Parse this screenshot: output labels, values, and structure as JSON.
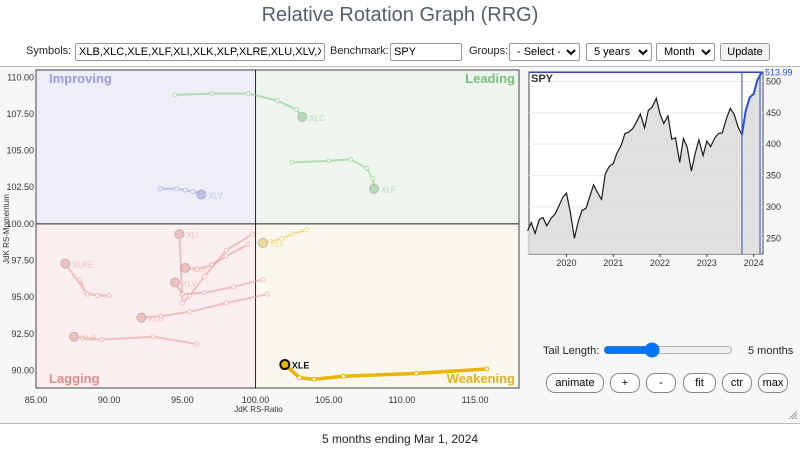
{
  "page_title": "Relative Rotation Graph (RRG)",
  "controls": {
    "symbols_label": "Symbols:",
    "symbols_value": "XLB,XLC,XLE,XLF,XLI,XLK,XLP,XLRE,XLU,XLV,XLY",
    "benchmark_label": "Benchmark:",
    "benchmark_value": "SPY",
    "groups_label": "Groups:",
    "groups_selected": "- Select -",
    "period_selected": "5 years",
    "frequency_selected": "Monthly",
    "update_label": "Update"
  },
  "quadrants": {
    "improving": "Improving",
    "leading": "Leading",
    "lagging": "Lagging",
    "weakening": "Weakening"
  },
  "colors": {
    "improving_bg": "#eeeef8",
    "leading_bg": "#eef5ee",
    "lagging_bg": "#fbeeee",
    "weakening_bg": "#faf8ee",
    "improving_text": "#9a9ae0",
    "leading_text": "#7cbf7c",
    "lagging_text": "#e08c8c",
    "weakening_text": "#e2b21b",
    "xle_tail": "#e8b600",
    "spy_line": "#1a1a1a",
    "spy_recent": "#2b4fd6",
    "spy_fill": "#dadada"
  },
  "tail_control": {
    "label": "Tail Length:",
    "value": 5,
    "min": 1,
    "max": 12,
    "value_label": "5 months"
  },
  "buttons": {
    "animate": "animate",
    "plus": "+",
    "minus": "-",
    "fit": "fit",
    "ctr": "ctr",
    "max": "max"
  },
  "footer_text": "5 months ending Mar 1, 2024",
  "chart_data": [
    {
      "type": "scatter",
      "title": "",
      "xlabel": "JdK RS-Ratio",
      "ylabel": "JdK RS-Momentum",
      "xlim": [
        85,
        118
      ],
      "ylim": [
        88.8,
        110.5
      ],
      "xticks": [
        "85.00",
        "90.00",
        "95.00",
        "100.00",
        "105.00",
        "110.00",
        "115.00"
      ],
      "yticks": [
        "110.00",
        "107.50",
        "105.00",
        "102.50",
        "100.00",
        "97.50",
        "95.00",
        "92.50",
        "90.00"
      ],
      "center": [
        100,
        100
      ],
      "series": [
        {
          "name": "XLC",
          "color": "#82c882",
          "highlight": false,
          "points": [
            [
              94.5,
              108.8
            ],
            [
              97.0,
              108.9
            ],
            [
              99.5,
              108.9
            ],
            [
              101.5,
              108.4
            ],
            [
              102.8,
              107.8
            ],
            [
              103.2,
              107.3
            ]
          ]
        },
        {
          "name": "XLF",
          "color": "#82c882",
          "highlight": false,
          "points": [
            [
              102.5,
              104.2
            ],
            [
              105.0,
              104.3
            ],
            [
              106.5,
              104.4
            ],
            [
              107.6,
              103.8
            ],
            [
              108.0,
              103.1
            ],
            [
              108.1,
              102.4
            ]
          ]
        },
        {
          "name": "XLY",
          "color": "#9a9ae0",
          "highlight": false,
          "points": [
            [
              93.5,
              102.4
            ],
            [
              94.6,
              102.4
            ],
            [
              95.2,
              102.3
            ],
            [
              95.7,
              102.2
            ],
            [
              96.1,
              102.1
            ],
            [
              96.3,
              102.0
            ]
          ]
        },
        {
          "name": "XLK",
          "color": "#e8c84a",
          "highlight": false,
          "points": [
            [
              103.5,
              99.6
            ],
            [
              102.5,
              99.3
            ],
            [
              101.8,
              99.0
            ],
            [
              101.0,
              98.8
            ],
            [
              100.6,
              98.7
            ],
            [
              100.5,
              98.7
            ]
          ]
        },
        {
          "name": "XLE",
          "color": "#e8b600",
          "highlight": true,
          "points": [
            [
              115.8,
              90.1
            ],
            [
              111.0,
              89.8
            ],
            [
              106.0,
              89.6
            ],
            [
              104.0,
              89.4
            ],
            [
              103.0,
              89.5
            ],
            [
              102.0,
              90.4
            ]
          ]
        },
        {
          "name": "XLI",
          "color": "#e89a9a",
          "highlight": false,
          "points": [
            [
              99.8,
              99.3
            ],
            [
              98.0,
              98.2
            ],
            [
              96.5,
              96.4
            ],
            [
              95.5,
              95.1
            ],
            [
              95.0,
              94.6
            ],
            [
              94.8,
              99.3
            ]
          ]
        },
        {
          "name": "XLRE",
          "color": "#e89a9a",
          "highlight": false,
          "points": [
            [
              88.0,
              96.2
            ],
            [
              88.4,
              95.3
            ],
            [
              89.2,
              95.1
            ],
            [
              90.0,
              95.1
            ],
            [
              88.5,
              95.2
            ],
            [
              87.0,
              97.3
            ]
          ]
        },
        {
          "name": "XLB",
          "color": "#e89a9a",
          "highlight": false,
          "points": [
            [
              96.0,
              91.8
            ],
            [
              93.0,
              92.3
            ],
            [
              89.5,
              92.1
            ],
            [
              88.2,
              92.2
            ],
            [
              87.6,
              92.3
            ]
          ]
        },
        {
          "name": "XLV",
          "color": "#e89a9a",
          "highlight": false,
          "points": [
            [
              100.5,
              96.2
            ],
            [
              98.5,
              95.7
            ],
            [
              96.5,
              95.3
            ],
            [
              95.0,
              95.2
            ],
            [
              94.5,
              96.0
            ]
          ]
        },
        {
          "name": "XLP",
          "color": "#e89a9a",
          "highlight": false,
          "points": [
            [
              99.5,
              98.6
            ],
            [
              98.0,
              97.8
            ],
            [
              97.0,
              97.2
            ],
            [
              96.0,
              96.9
            ],
            [
              95.2,
              97.0
            ]
          ]
        },
        {
          "name": "XLU",
          "color": "#e89a9a",
          "highlight": false,
          "points": [
            [
              100.8,
              95.2
            ],
            [
              98.0,
              94.6
            ],
            [
              95.5,
              94.0
            ],
            [
              93.5,
              93.7
            ],
            [
              92.2,
              93.6
            ]
          ]
        }
      ]
    },
    {
      "type": "line",
      "title": "SPY",
      "last_value_label": "513.99",
      "xticks": [
        "2020",
        "2021",
        "2022",
        "2023",
        "2024"
      ],
      "yticks": [
        "250",
        "300",
        "350",
        "400",
        "450",
        "500"
      ],
      "ylim": [
        225,
        515
      ],
      "xlim": [
        2019.2,
        2024.2
      ],
      "highlight_start": 2023.75,
      "x": [
        2019.17,
        2019.25,
        2019.33,
        2019.42,
        2019.5,
        2019.58,
        2019.67,
        2019.75,
        2019.83,
        2019.92,
        2020.0,
        2020.08,
        2020.17,
        2020.25,
        2020.33,
        2020.42,
        2020.5,
        2020.58,
        2020.67,
        2020.75,
        2020.83,
        2020.92,
        2021.0,
        2021.08,
        2021.17,
        2021.25,
        2021.33,
        2021.42,
        2021.5,
        2021.58,
        2021.67,
        2021.75,
        2021.83,
        2021.92,
        2022.0,
        2022.08,
        2022.17,
        2022.25,
        2022.33,
        2022.42,
        2022.5,
        2022.58,
        2022.67,
        2022.75,
        2022.83,
        2022.92,
        2023.0,
        2023.08,
        2023.17,
        2023.25,
        2023.33,
        2023.42,
        2023.5,
        2023.58,
        2023.67,
        2023.75,
        2023.83,
        2023.92,
        2024.0,
        2024.08,
        2024.17
      ],
      "y": [
        262,
        275,
        258,
        280,
        283,
        270,
        282,
        288,
        300,
        315,
        322,
        293,
        250,
        276,
        294,
        298,
        317,
        335,
        322,
        312,
        353,
        365,
        369,
        386,
        398,
        417,
        419,
        425,
        436,
        448,
        426,
        454,
        459,
        473,
        448,
        433,
        445,
        408,
        410,
        371,
        409,
        395,
        357,
        385,
        407,
        382,
        405,
        396,
        410,
        417,
        418,
        441,
        457,
        448,
        427,
        415,
        453,
        475,
        480,
        502,
        514
      ]
    }
  ]
}
